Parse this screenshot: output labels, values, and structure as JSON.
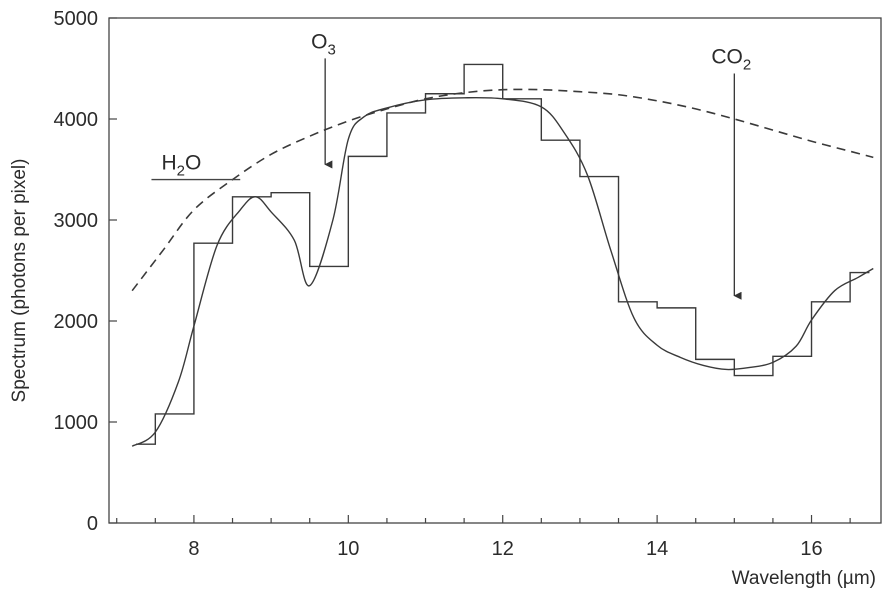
{
  "chart_data": {
    "type": "line",
    "title": "",
    "xlabel": "Wavelength",
    "xlabel_unit": "µm",
    "ylabel": "Spectrum (photons per pixel)",
    "xlim": [
      6.9,
      16.9
    ],
    "ylim": [
      0,
      5000
    ],
    "x_ticks": [
      8,
      10,
      12,
      14,
      16
    ],
    "y_ticks": [
      0,
      1000,
      2000,
      3000,
      4000,
      5000
    ],
    "grid": false,
    "legend": "none",
    "series": [
      {
        "style": "step",
        "line": "solid",
        "edges": [
          7.25,
          7.5,
          8.0,
          8.5,
          9.0,
          9.5,
          10.0,
          10.5,
          11.0,
          11.5,
          12.0,
          12.5,
          13.0,
          13.5,
          14.0,
          14.5,
          15.0,
          15.5,
          16.0,
          16.5,
          16.75
        ],
        "values": [
          780,
          1080,
          2770,
          3230,
          3270,
          2540,
          3630,
          4060,
          4250,
          4540,
          4200,
          3790,
          3430,
          2190,
          2130,
          1620,
          1460,
          1650,
          2190,
          2480
        ]
      },
      {
        "style": "smooth",
        "line": "solid",
        "x": [
          7.2,
          7.5,
          7.8,
          8.0,
          8.3,
          8.6,
          8.8,
          9.0,
          9.3,
          9.5,
          9.8,
          10.0,
          10.2,
          10.5,
          11.0,
          11.5,
          12.0,
          12.5,
          12.8,
          13.1,
          13.4,
          13.7,
          14.0,
          14.3,
          14.6,
          14.9,
          15.2,
          15.5,
          15.8,
          16.0,
          16.3,
          16.6,
          16.8
        ],
        "y": [
          760,
          900,
          1400,
          1950,
          2750,
          3100,
          3230,
          3080,
          2800,
          2350,
          3000,
          3800,
          4020,
          4110,
          4190,
          4210,
          4200,
          4120,
          3860,
          3440,
          2700,
          2030,
          1760,
          1640,
          1560,
          1520,
          1540,
          1590,
          1750,
          2010,
          2300,
          2430,
          2520
        ]
      },
      {
        "style": "smooth",
        "line": "dashed",
        "x": [
          7.2,
          7.6,
          8.0,
          8.5,
          9.0,
          9.5,
          10.0,
          10.5,
          11.0,
          11.5,
          12.0,
          12.5,
          13.0,
          13.5,
          14.0,
          14.5,
          15.0,
          15.5,
          16.0,
          16.5,
          16.8
        ],
        "y": [
          2300,
          2700,
          3100,
          3400,
          3650,
          3830,
          3980,
          4100,
          4200,
          4260,
          4290,
          4290,
          4270,
          4240,
          4180,
          4100,
          4000,
          3890,
          3780,
          3680,
          3620
        ]
      }
    ],
    "annotations": [
      {
        "label": "H",
        "sub": "2",
        "tail": "O",
        "arrow": "segment",
        "x_start": 7.45,
        "x_end": 8.6,
        "y": 3400
      },
      {
        "label": "O",
        "sub": "3",
        "tail": "",
        "arrow": "down",
        "x": 9.7,
        "y_from": 4600,
        "y_to": 3550
      },
      {
        "label": "CO",
        "sub": "2",
        "tail": "",
        "arrow": "down",
        "x": 15.0,
        "y_from": 4450,
        "y_to": 2250
      }
    ]
  }
}
